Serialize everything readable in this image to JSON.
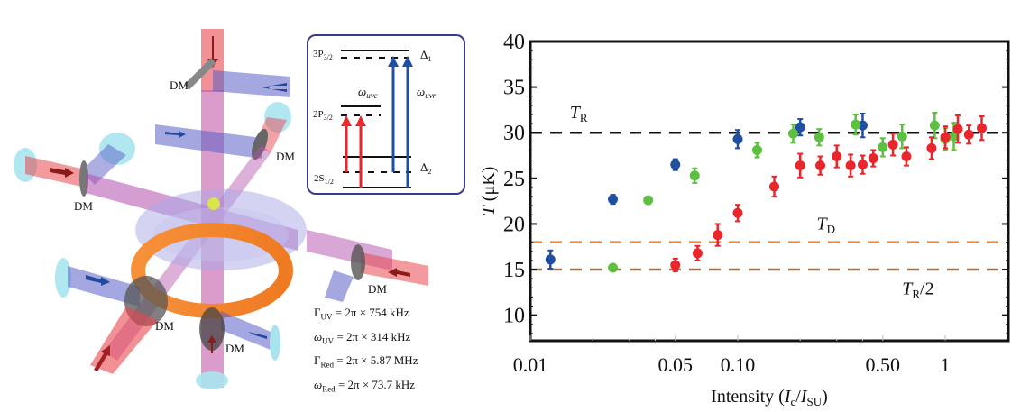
{
  "illustration": {
    "labels": {
      "dm": "DM"
    },
    "dm_count": 6,
    "energy_levels": {
      "levels": [
        "3P3/2",
        "2P3/2",
        "2S1/2"
      ],
      "detunings": [
        "Δ1",
        "Δ2"
      ],
      "transitions": [
        "ωuvc",
        "ωuvr"
      ]
    },
    "parameters": [
      {
        "symbol": "Γ",
        "sub": "UV",
        "value": "= 2π × 754 kHz"
      },
      {
        "symbol": "ω",
        "sub": "UV",
        "value": "= 2π × 314 kHz"
      },
      {
        "symbol": "Γ",
        "sub": "Red",
        "value": "= 2π × 5.87 MHz"
      },
      {
        "symbol": "ω",
        "sub": "Red",
        "value": "= 2π × 73.7 kHz"
      }
    ],
    "colors": {
      "red_beam": "#e8474f",
      "uv_beam": "#5b5fc7",
      "ring": "#f08a2a"
    }
  },
  "chart_data": {
    "type": "scatter",
    "title": "",
    "xlabel": "Intensity (Ic/ISU)",
    "xlabel_parts": {
      "main": "Intensity (",
      "i1": "I",
      "s1": "c",
      "slash": "/",
      "i2": "I",
      "s2": "SU",
      "close": ")"
    },
    "ylabel": "T (μK)",
    "xscale": "log",
    "xlim": [
      0.01,
      2.0
    ],
    "ylim": [
      7.2,
      40
    ],
    "xticks": [
      {
        "value": 0.01,
        "label": "0.01"
      },
      {
        "value": 0.05,
        "label": "0.05"
      },
      {
        "value": 0.1,
        "label": "0.10"
      },
      {
        "value": 0.5,
        "label": "0.50"
      },
      {
        "value": 1,
        "label": "1"
      }
    ],
    "yticks": [
      {
        "value": 10,
        "label": "10"
      },
      {
        "value": 15,
        "label": "15"
      },
      {
        "value": 20,
        "label": "20"
      },
      {
        "value": 25,
        "label": "25"
      },
      {
        "value": 30,
        "label": "30"
      },
      {
        "value": 35,
        "label": "35"
      },
      {
        "value": 40,
        "label": "40"
      }
    ],
    "reference_lines": [
      {
        "name": "T_R",
        "label_main": "T",
        "label_sub": "R",
        "label_suffix": "",
        "y": 30,
        "color": "#111111",
        "label_x": 0.0155,
        "label_y": 31.6
      },
      {
        "name": "T_D",
        "label_main": "T",
        "label_sub": "D",
        "label_suffix": "",
        "y": 18,
        "color": "#f08a3a",
        "label_x": 0.24,
        "label_y": 19.4
      },
      {
        "name": "T_R/2",
        "label_main": "T",
        "label_sub": "R",
        "label_suffix": "/2",
        "y": 15,
        "color": "#9c7350",
        "label_x": 0.62,
        "label_y": 12.3
      }
    ],
    "series": [
      {
        "name": "blue",
        "color": "#1f4fa3",
        "points": [
          {
            "x": 0.0125,
            "y": 16.1,
            "err": 1.0
          },
          {
            "x": 0.025,
            "y": 22.7,
            "err": 0.5
          },
          {
            "x": 0.05,
            "y": 26.5,
            "err": 0.6
          },
          {
            "x": 0.1,
            "y": 29.3,
            "err": 1.0
          },
          {
            "x": 0.2,
            "y": 30.6,
            "err": 0.9
          },
          {
            "x": 0.4,
            "y": 30.8,
            "err": 1.3
          }
        ]
      },
      {
        "name": "green",
        "color": "#5ec040",
        "points": [
          {
            "x": 0.025,
            "y": 15.2,
            "err": 0.0
          },
          {
            "x": 0.037,
            "y": 22.6,
            "err": 0.0
          },
          {
            "x": 0.062,
            "y": 25.3,
            "err": 0.8
          },
          {
            "x": 0.124,
            "y": 28.1,
            "err": 0.8
          },
          {
            "x": 0.185,
            "y": 29.9,
            "err": 1.0
          },
          {
            "x": 0.247,
            "y": 29.5,
            "err": 0.9
          },
          {
            "x": 0.37,
            "y": 30.9,
            "err": 1.1
          },
          {
            "x": 0.5,
            "y": 28.4,
            "err": 1.0
          },
          {
            "x": 0.62,
            "y": 29.6,
            "err": 1.3
          },
          {
            "x": 0.89,
            "y": 30.8,
            "err": 1.4
          },
          {
            "x": 1.0,
            "y": 29.3,
            "err": 1.2
          },
          {
            "x": 1.1,
            "y": 29.6,
            "err": 1.5
          }
        ]
      },
      {
        "name": "red",
        "color": "#e8262c",
        "points": [
          {
            "x": 0.05,
            "y": 15.5,
            "err": 0.7
          },
          {
            "x": 0.064,
            "y": 16.8,
            "err": 0.8
          },
          {
            "x": 0.08,
            "y": 18.8,
            "err": 1.2
          },
          {
            "x": 0.1,
            "y": 21.2,
            "err": 0.9
          },
          {
            "x": 0.15,
            "y": 24.1,
            "err": 1.1
          },
          {
            "x": 0.2,
            "y": 26.4,
            "err": 1.3
          },
          {
            "x": 0.25,
            "y": 26.4,
            "err": 1.0
          },
          {
            "x": 0.3,
            "y": 27.4,
            "err": 1.2
          },
          {
            "x": 0.35,
            "y": 26.4,
            "err": 1.2
          },
          {
            "x": 0.4,
            "y": 26.5,
            "err": 1.0
          },
          {
            "x": 0.45,
            "y": 27.2,
            "err": 0.9
          },
          {
            "x": 0.56,
            "y": 28.7,
            "err": 1.2
          },
          {
            "x": 0.65,
            "y": 27.4,
            "err": 1.0
          },
          {
            "x": 0.86,
            "y": 28.3,
            "err": 1.2
          },
          {
            "x": 1.0,
            "y": 29.5,
            "err": 1.2
          },
          {
            "x": 1.15,
            "y": 30.4,
            "err": 1.5
          },
          {
            "x": 1.3,
            "y": 29.8,
            "err": 1.0
          },
          {
            "x": 1.5,
            "y": 30.5,
            "err": 1.3
          }
        ]
      }
    ],
    "grid": false,
    "legend": "none"
  }
}
